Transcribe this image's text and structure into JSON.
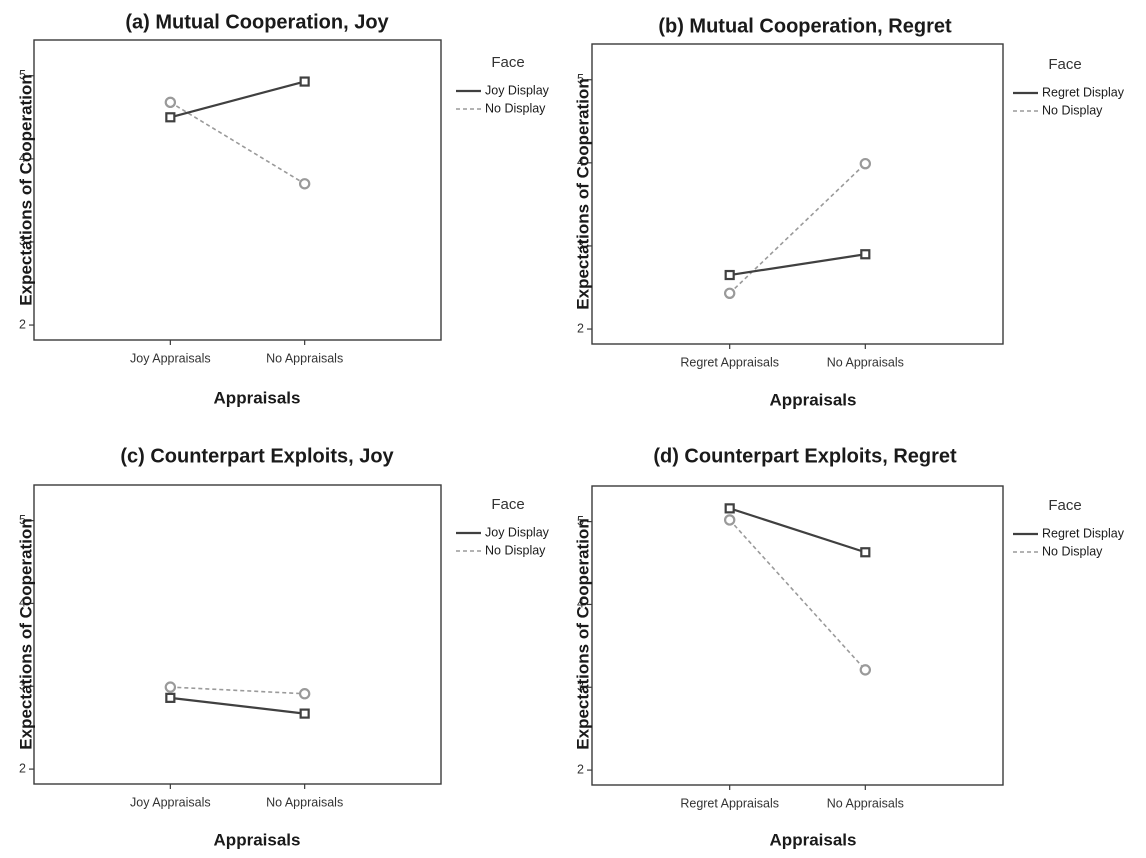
{
  "chart_data": [
    {
      "type": "line",
      "title": "(a) Mutual Cooperation, Joy",
      "xlabel": "Appraisals",
      "ylabel": "Expectations of Cooperation",
      "categories": [
        "Joy Appraisals",
        "No Appraisals"
      ],
      "yticks": [
        "2",
        "3",
        "4",
        "5"
      ],
      "ylim": [
        1.82,
        5.43
      ],
      "legend_title": "Face",
      "series": [
        {
          "name": "Joy Display",
          "values": [
            4.5,
            4.93
          ],
          "style": "solid",
          "marker": "square",
          "color": "#404040"
        },
        {
          "name": "No Display",
          "values": [
            4.68,
            3.7
          ],
          "style": "dashed",
          "marker": "circle",
          "color": "#9a9a9a"
        }
      ]
    },
    {
      "type": "line",
      "title": "(b) Mutual Cooperation, Regret",
      "xlabel": "Appraisals",
      "ylabel": "Expectations of Cooperation",
      "categories": [
        "Regret Appraisals",
        "No Appraisals"
      ],
      "yticks": [
        "2",
        "3",
        "4",
        "5"
      ],
      "ylim": [
        1.82,
        5.43
      ],
      "legend_title": "Face",
      "series": [
        {
          "name": "Regret Display",
          "values": [
            2.65,
            2.9
          ],
          "style": "solid",
          "marker": "square",
          "color": "#404040"
        },
        {
          "name": "No Display",
          "values": [
            2.43,
            3.99
          ],
          "style": "dashed",
          "marker": "circle",
          "color": "#9a9a9a"
        }
      ]
    },
    {
      "type": "line",
      "title": "(c) Counterpart Exploits, Joy",
      "xlabel": "Appraisals",
      "ylabel": "Expectations of Cooperation",
      "categories": [
        "Joy Appraisals",
        "No Appraisals"
      ],
      "yticks": [
        "2",
        "3",
        "4",
        "5"
      ],
      "ylim": [
        1.82,
        5.43
      ],
      "legend_title": "Face",
      "series": [
        {
          "name": "Joy Display",
          "values": [
            2.86,
            2.67
          ],
          "style": "solid",
          "marker": "square",
          "color": "#404040"
        },
        {
          "name": "No Display",
          "values": [
            2.99,
            2.91
          ],
          "style": "dashed",
          "marker": "circle",
          "color": "#9a9a9a"
        }
      ]
    },
    {
      "type": "line",
      "title": "(d) Counterpart Exploits, Regret",
      "xlabel": "Appraisals",
      "ylabel": "Expectations of Cooperation",
      "categories": [
        "Regret Appraisals",
        "No Appraisals"
      ],
      "yticks": [
        "2",
        "3",
        "4",
        "5"
      ],
      "ylim": [
        1.82,
        5.43
      ],
      "legend_title": "Face",
      "series": [
        {
          "name": "Regret Display",
          "values": [
            5.16,
            4.63
          ],
          "style": "solid",
          "marker": "square",
          "color": "#404040"
        },
        {
          "name": "No Display",
          "values": [
            5.02,
            3.21
          ],
          "style": "dashed",
          "marker": "circle",
          "color": "#9a9a9a"
        }
      ]
    }
  ]
}
